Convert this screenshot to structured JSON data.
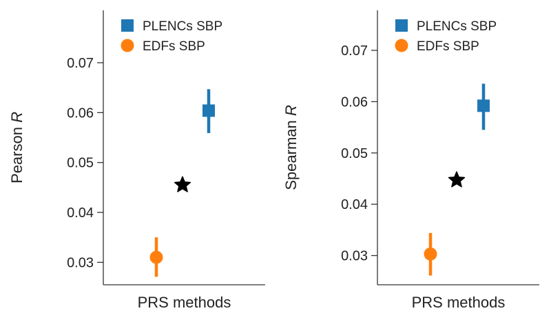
{
  "chart_data": [
    {
      "type": "scatter",
      "ylabel": "Pearson",
      "ylabel_italic": "R",
      "xlabel": "PRS methods",
      "ylim": [
        0.0255,
        0.0805
      ],
      "yticks": [
        "0.03",
        "0.04",
        "0.05",
        "0.06",
        "0.07"
      ],
      "legend": {
        "placement": "top-left",
        "entries": [
          "PLENCs SBP",
          "EDFs SBP"
        ]
      },
      "points": [
        {
          "name": "EDFs SBP",
          "marker": "circle",
          "color": "#ff7f0e",
          "y": 0.031,
          "err_low": 0.0271,
          "err_high": 0.035
        },
        {
          "name": "",
          "marker": "star",
          "color": "#000000",
          "y": 0.0455
        },
        {
          "name": "PLENCs SBP",
          "marker": "square",
          "color": "#1f77b4",
          "y": 0.0604,
          "err_low": 0.0559,
          "err_high": 0.0647
        }
      ]
    },
    {
      "type": "scatter",
      "ylabel": "Spearman",
      "ylabel_italic": "R",
      "xlabel": "PRS methods",
      "ylim": [
        0.0243,
        0.0778
      ],
      "yticks": [
        "0.03",
        "0.04",
        "0.05",
        "0.06",
        "0.07"
      ],
      "legend": {
        "placement": "top-left",
        "entries": [
          "PLENCs SBP",
          "EDFs SBP"
        ]
      },
      "points": [
        {
          "name": "EDFs SBP",
          "marker": "circle",
          "color": "#ff7f0e",
          "y": 0.0303,
          "err_low": 0.0261,
          "err_high": 0.0344
        },
        {
          "name": "",
          "marker": "star",
          "color": "#000000",
          "y": 0.0447
        },
        {
          "name": "PLENCs SBP",
          "marker": "square",
          "color": "#1f77b4",
          "y": 0.0592,
          "err_low": 0.0545,
          "err_high": 0.0635
        }
      ]
    }
  ]
}
